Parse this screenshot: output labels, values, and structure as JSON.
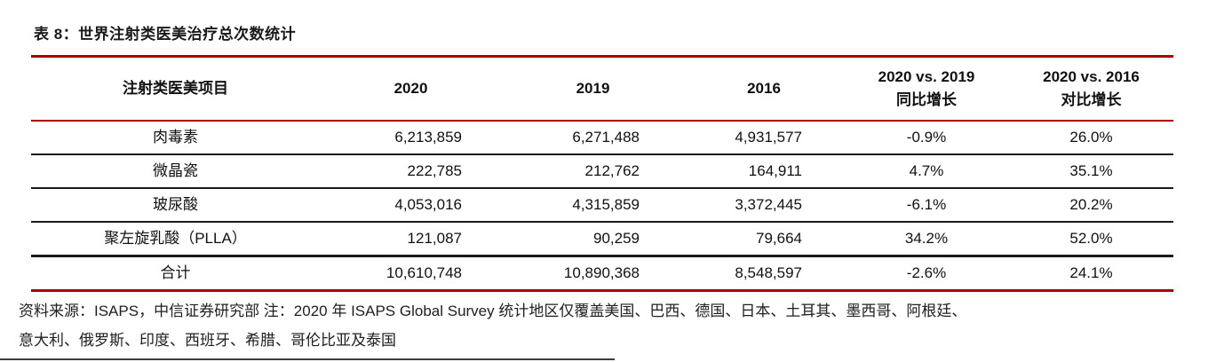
{
  "title": "表 8：世界注射类医美治疗总次数统计",
  "table": {
    "headers": [
      [
        "注射类医美项目"
      ],
      [
        "2020"
      ],
      [
        "2019"
      ],
      [
        "2016"
      ],
      [
        "2020 vs. 2019",
        "同比增长"
      ],
      [
        "2020 vs. 2016",
        "对比增长"
      ]
    ],
    "rows": [
      [
        "肉毒素",
        "6,213,859",
        "6,271,488",
        "4,931,577",
        "-0.9%",
        "26.0%"
      ],
      [
        "微晶瓷",
        "222,785",
        "212,762",
        "164,911",
        "4.7%",
        "35.1%"
      ],
      [
        "玻尿酸",
        "4,053,016",
        "4,315,859",
        "3,372,445",
        "-6.1%",
        "20.2%"
      ],
      [
        "聚左旋乳酸（PLLA）",
        "121,087",
        "90,259",
        "79,664",
        "34.2%",
        "52.0%"
      ],
      [
        "合计",
        "10,610,748",
        "10,890,368",
        "8,548,597",
        "-2.6%",
        "24.1%"
      ]
    ]
  },
  "footer": {
    "line1": "资料来源：ISAPS，中信证券研究部  注：2020 年 ISAPS Global Survey 统计地区仅覆盖美国、巴西、德国、日本、土耳其、墨西哥、阿根廷、",
    "line2": "意大利、俄罗斯、印度、西班牙、希腊、哥伦比亚及泰国"
  },
  "colors": {
    "accent_red": "#a80000",
    "rule_black": "#1a1a1a"
  }
}
